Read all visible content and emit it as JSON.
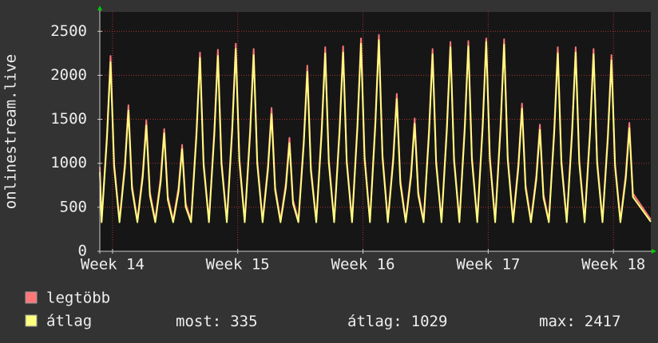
{
  "chart_data": {
    "type": "line",
    "y_label": "onlinestream.live",
    "x": [
      0,
      0.1,
      0.4,
      0.6,
      0.8,
      1.1,
      1.4,
      1.6,
      1.8,
      2.1,
      2.4,
      2.6,
      2.8,
      3.1,
      3.4,
      3.6,
      3.8,
      4.1,
      4.4,
      4.6,
      4.8,
      5.1,
      5.4,
      5.6,
      5.8,
      6.1,
      6.4,
      6.6,
      6.8,
      7.1,
      7.4,
      7.6,
      7.8,
      8.1,
      8.4,
      8.6,
      8.8,
      9.1,
      9.4,
      9.6,
      9.8,
      10.1,
      10.4,
      10.6,
      10.8,
      11.1,
      11.4,
      11.6,
      11.8,
      12.1,
      12.4,
      12.6,
      12.8,
      13.1,
      13.4,
      13.6,
      13.8,
      14.1,
      14.4,
      14.6,
      14.8,
      15.1,
      15.4,
      15.6,
      15.8,
      16.1,
      16.4,
      16.6,
      16.8,
      17.1,
      17.4,
      17.6,
      17.8,
      18.1,
      18.4,
      18.6,
      18.8,
      19.1,
      19.4,
      19.6,
      19.8,
      20.1,
      20.4,
      20.6,
      20.8,
      21.1,
      21.4,
      21.6,
      21.8,
      22.1,
      22.4,
      22.6,
      22.8,
      23.1,
      23.4,
      23.6,
      23.8,
      24.1,
      24.4,
      24.6,
      24.8,
      25.1,
      25.4,
      25.6,
      25.8,
      26.1,
      26.4,
      26.6,
      26.8,
      27.1,
      27.4,
      27.6,
      27.8,
      28.1,
      28.4,
      28.6,
      28.8,
      29.1,
      29.4,
      29.6,
      29.8,
      30.8
    ],
    "series": [
      {
        "name": "legtöbb",
        "color": "#ff7777",
        "values": [
          960,
          350,
          1332,
          2220,
          999,
          350,
          996,
          1660,
          747,
          350,
          894,
          1490,
          671,
          350,
          834,
          1390,
          626,
          350,
          726,
          1210,
          545,
          350,
          1356,
          2260,
          1017,
          350,
          1374,
          2290,
          1031,
          350,
          1416,
          2360,
          1062,
          350,
          1380,
          2300,
          1035,
          350,
          978,
          1630,
          734,
          350,
          774,
          1290,
          581,
          350,
          1266,
          2110,
          950,
          350,
          1392,
          2320,
          1044,
          350,
          1398,
          2330,
          1049,
          350,
          1452,
          2420,
          1089,
          350,
          1476,
          2460,
          1107,
          350,
          1074,
          1790,
          806,
          350,
          906,
          1510,
          680,
          350,
          1380,
          2300,
          1035,
          350,
          1428,
          2380,
          1071,
          350,
          1434,
          2390,
          1076,
          350,
          1452,
          2420,
          1089,
          350,
          1446,
          2410,
          1085,
          350,
          1008,
          1680,
          756,
          350,
          864,
          1440,
          648,
          350,
          1392,
          2320,
          1044,
          350,
          1392,
          2320,
          1044,
          350,
          1380,
          2300,
          1035,
          350,
          1338,
          2230,
          1004,
          350,
          876,
          1460,
          657,
          360
        ]
      },
      {
        "name": "átlag",
        "color": "#ffff80",
        "values": [
          900,
          330,
          1282,
          2150,
          959,
          330,
          946,
          1600,
          707,
          330,
          844,
          1430,
          631,
          330,
          784,
          1340,
          586,
          330,
          676,
          1160,
          505,
          330,
          1306,
          2200,
          977,
          330,
          1324,
          2220,
          991,
          330,
          1366,
          2300,
          1022,
          330,
          1330,
          2230,
          995,
          330,
          928,
          1560,
          694,
          330,
          724,
          1230,
          541,
          330,
          1216,
          2040,
          910,
          330,
          1342,
          2250,
          1004,
          330,
          1348,
          2260,
          1009,
          330,
          1402,
          2360,
          1049,
          330,
          1426,
          2400,
          1067,
          330,
          1024,
          1730,
          766,
          330,
          856,
          1450,
          640,
          330,
          1330,
          2240,
          995,
          330,
          1378,
          2320,
          1031,
          330,
          1384,
          2330,
          1036,
          330,
          1402,
          2380,
          1049,
          330,
          1396,
          2350,
          1045,
          330,
          958,
          1620,
          716,
          330,
          814,
          1380,
          608,
          330,
          1342,
          2250,
          1004,
          330,
          1342,
          2260,
          1004,
          330,
          1330,
          2240,
          995,
          330,
          1288,
          2170,
          964,
          330,
          826,
          1400,
          617,
          335
        ]
      }
    ],
    "xlim": [
      0,
      30.8
    ],
    "xticks": [
      {
        "value": 0.71,
        "label": "Week 14"
      },
      {
        "value": 7.71,
        "label": "Week 15"
      },
      {
        "value": 14.71,
        "label": "Week 16"
      },
      {
        "value": 21.71,
        "label": "Week 17"
      },
      {
        "value": 28.71,
        "label": "Week 18"
      }
    ],
    "ylim": [
      0,
      2720
    ],
    "yticks": [
      0,
      500,
      1000,
      1500,
      2000,
      2500
    ],
    "grid": true,
    "stats": [
      {
        "label": "most:",
        "value": 335
      },
      {
        "label": "átlag:",
        "value": 1029
      },
      {
        "label": "max:",
        "value": 2417
      }
    ]
  }
}
